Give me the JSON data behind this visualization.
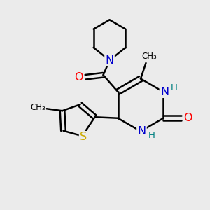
{
  "bg_color": "#ebebeb",
  "atom_colors": {
    "C": "#000000",
    "N": "#0000cd",
    "O": "#ff0000",
    "S": "#ccaa00",
    "H": "#008080"
  },
  "bond_color": "#000000",
  "bond_width": 1.8,
  "figsize": [
    3.0,
    3.0
  ],
  "dpi": 100,
  "xlim": [
    0,
    10
  ],
  "ylim": [
    0,
    10
  ]
}
